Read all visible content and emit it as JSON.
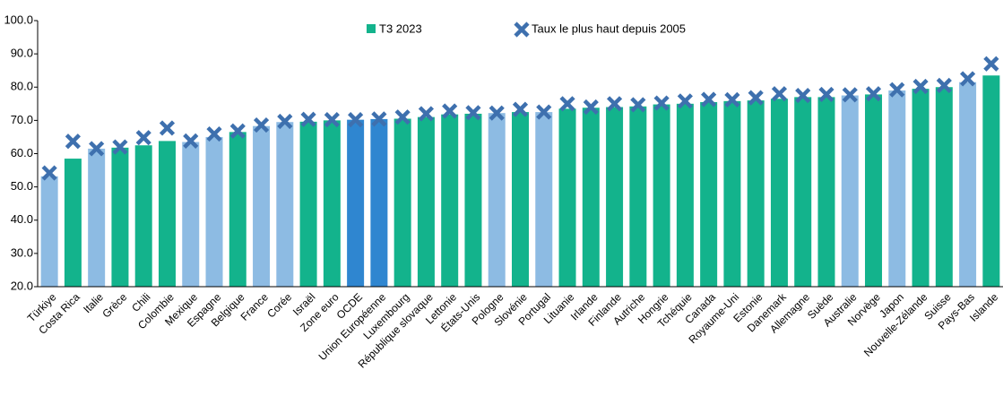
{
  "chart_data": {
    "type": "bar",
    "categories": [
      "Türkiye",
      "Costa Rica",
      "Italie",
      "Grèce",
      "Chili",
      "Colombie",
      "Mexique",
      "Espagne",
      "Belgique",
      "France",
      "Corée",
      "Israël",
      "Zone euro",
      "OCDE",
      "Union Européenne",
      "Luxembourg",
      "République slovaque",
      "Lettonie",
      "États-Unis",
      "Pologne",
      "Slovénie",
      "Portugal",
      "Lituanie",
      "Irlande",
      "Finlande",
      "Autriche",
      "Hongrie",
      "Tchéquie",
      "Canada",
      "Royaume-Uni",
      "Estonie",
      "Danemark",
      "Allemagne",
      "Suède",
      "Australie",
      "Norvège",
      "Japon",
      "Nouvelle-Zélande",
      "Suisse",
      "Pays-Bas",
      "Islande"
    ],
    "series": [
      {
        "name": "T3 2023",
        "color": "#13b38c",
        "colors": [
          "#8dbbe3",
          "#13b38c",
          "#8dbbe3",
          "#13b38c",
          "#13b38c",
          "#13b38c",
          "#8dbbe3",
          "#8dbbe3",
          "#13b38c",
          "#8dbbe3",
          "#8dbbe3",
          "#13b38c",
          "#13b38c",
          "#2f86d0",
          "#2f86d0",
          "#13b38c",
          "#13b38c",
          "#13b38c",
          "#13b38c",
          "#8dbbe3",
          "#13b38c",
          "#8dbbe3",
          "#13b38c",
          "#13b38c",
          "#13b38c",
          "#13b38c",
          "#13b38c",
          "#13b38c",
          "#13b38c",
          "#13b38c",
          "#13b38c",
          "#13b38c",
          "#13b38c",
          "#13b38c",
          "#8dbbe3",
          "#13b38c",
          "#8dbbe3",
          "#13b38c",
          "#13b38c",
          "#8dbbe3",
          "#13b38c"
        ],
        "values": [
          53.2,
          58.5,
          61.5,
          61.8,
          62.5,
          63.8,
          63.5,
          65.0,
          66.5,
          68.3,
          69.5,
          69.6,
          70.0,
          70.2,
          70.4,
          70.5,
          71.0,
          71.8,
          72.0,
          72.2,
          72.5,
          72.5,
          73.5,
          73.8,
          74.0,
          74.2,
          74.8,
          75.0,
          75.5,
          75.8,
          76.0,
          76.5,
          77.0,
          77.0,
          77.5,
          77.8,
          79.0,
          79.5,
          80.0,
          81.5,
          83.5
        ]
      },
      {
        "name": "Taux le plus haut depuis 2005",
        "color": "#3e70ae",
        "marker": "x",
        "values": [
          54.2,
          63.7,
          61.5,
          62.0,
          64.8,
          67.7,
          63.8,
          65.9,
          66.8,
          68.6,
          69.7,
          70.3,
          70.2,
          70.2,
          70.4,
          71.0,
          72.0,
          72.8,
          72.3,
          72.2,
          73.3,
          72.5,
          75.0,
          74.0,
          75.0,
          74.7,
          75.2,
          75.8,
          76.3,
          76.2,
          76.8,
          78.0,
          77.5,
          77.8,
          77.7,
          78.0,
          79.2,
          80.2,
          80.5,
          82.5,
          87.0
        ]
      }
    ],
    "ylim": [
      20,
      100
    ],
    "yticks": [
      {
        "value": 20,
        "label": "20.0"
      },
      {
        "value": 30,
        "label": "30.0"
      },
      {
        "value": 40,
        "label": "40.0"
      },
      {
        "value": 50,
        "label": "50.0"
      },
      {
        "value": 60,
        "label": "60.0"
      },
      {
        "value": 70,
        "label": "70.0"
      },
      {
        "value": 80,
        "label": "80.0"
      },
      {
        "value": 90,
        "label": "90.0"
      },
      {
        "value": 100,
        "label": "100.0"
      }
    ],
    "grid": true,
    "legend": "top"
  }
}
